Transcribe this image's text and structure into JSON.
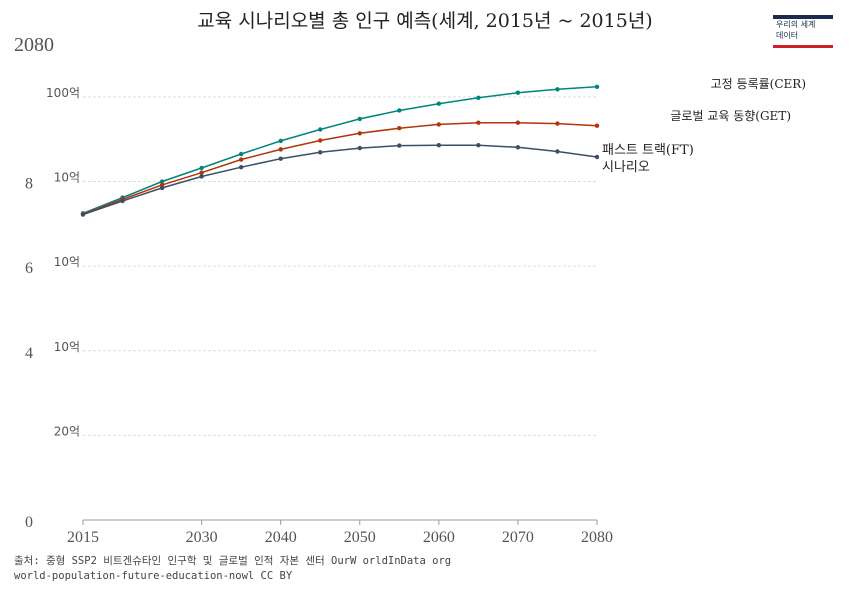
{
  "title": "교육 시나리오별 총 인구 예측(세계, 2015년 ~ 2015년)",
  "corner_label": "2080",
  "logo": {
    "line1": "우리의 세계",
    "line2": "데이터"
  },
  "source": {
    "line1": "출처: 중형 SSP2 비트겐슈타인 인구학 및 글로벌 인적 자본 센터 OurW orldInData org",
    "line2": "world-population-future-education-nowl CC BY"
  },
  "chart_data": {
    "type": "line",
    "title": "교육 시나리오별 총 인구 예측(세계, 2015년 ~ 2015년)",
    "x_ticks": [
      "2015",
      "2030",
      "2040",
      "2050",
      "2060",
      "2070",
      "2080"
    ],
    "y_ticks": [
      {
        "value": 0,
        "label": "0",
        "sub": ""
      },
      {
        "value": 2,
        "label": "",
        "sub": "20억"
      },
      {
        "value": 4,
        "label": "4",
        "sub": "10억"
      },
      {
        "value": 6,
        "label": "6",
        "sub": "10억"
      },
      {
        "value": 8,
        "label": "8",
        "sub": "10억"
      },
      {
        "value": 10,
        "label": "",
        "sub": "100억"
      }
    ],
    "xlim": [
      2015,
      2080
    ],
    "ylim": [
      0,
      10.4
    ],
    "grid": true,
    "x": [
      2015,
      2020,
      2025,
      2030,
      2035,
      2040,
      2045,
      2050,
      2055,
      2060,
      2065,
      2070,
      2075,
      2080
    ],
    "series": [
      {
        "name": "고정 등록률(CER)",
        "color": "#00847e",
        "values": [
          7.25,
          7.62,
          8.0,
          8.32,
          8.65,
          8.96,
          9.23,
          9.48,
          9.68,
          9.84,
          9.98,
          10.1,
          10.18,
          10.24
        ]
      },
      {
        "name": "글로벌 교육 동향(GET)",
        "color": "#b13507",
        "values": [
          7.23,
          7.58,
          7.92,
          8.21,
          8.52,
          8.76,
          8.97,
          9.14,
          9.26,
          9.35,
          9.39,
          9.39,
          9.37,
          9.32
        ]
      },
      {
        "name": "패스트 트랙(FT) 시나리오",
        "label_lines": [
          "패스트 트랙(FT)",
          "시나리오"
        ],
        "color": "#3c4e66",
        "values": [
          7.22,
          7.54,
          7.85,
          8.12,
          8.34,
          8.54,
          8.69,
          8.79,
          8.85,
          8.86,
          8.86,
          8.81,
          8.71,
          8.58
        ]
      }
    ]
  }
}
